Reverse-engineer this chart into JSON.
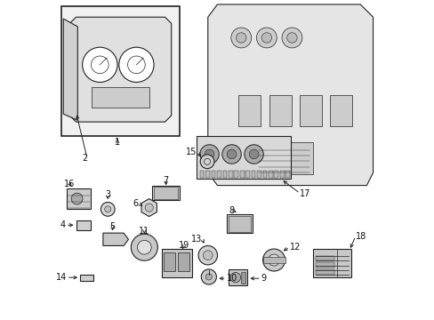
{
  "background_color": "#ffffff",
  "line_color": "#222222",
  "text_color": "#111111",
  "fig_width": 4.89,
  "fig_height": 3.6,
  "dpi": 100
}
